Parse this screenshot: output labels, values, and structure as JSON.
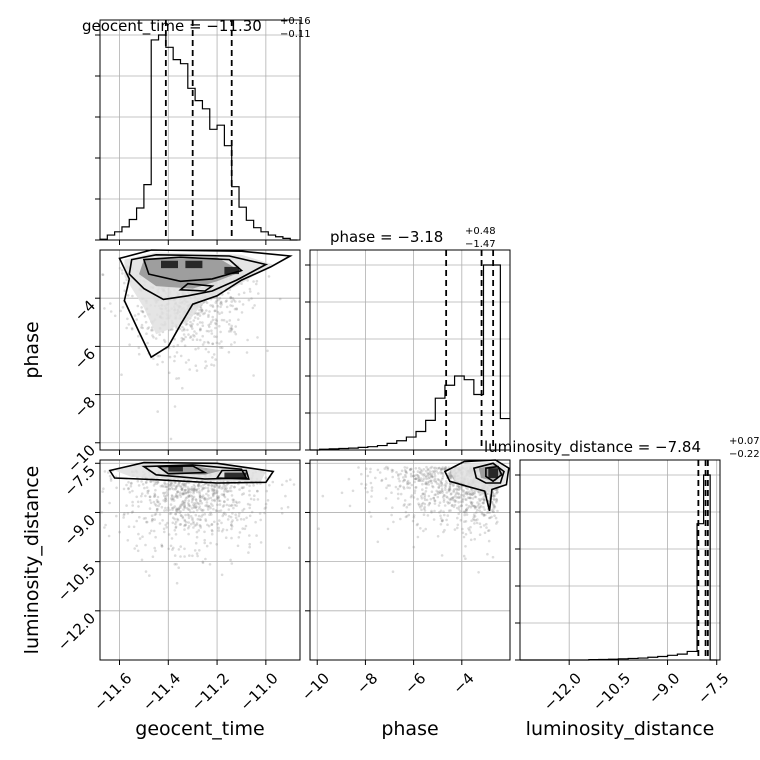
{
  "chart_data": {
    "type": "corner",
    "parameters": [
      {
        "name": "geocent_time",
        "label": "geocent_time",
        "range": [
          -11.68,
          -10.86
        ],
        "ticks": [
          -11.6,
          -11.4,
          -11.2,
          -11.0
        ],
        "tick_labels": [
          "−11.6",
          "−11.4",
          "−11.2",
          "−11.0"
        ]
      },
      {
        "name": "phase",
        "label": "phase",
        "range": [
          -10.3,
          -2.0
        ],
        "ticks": [
          -10,
          -8,
          -6,
          -4
        ],
        "tick_labels": [
          "−10",
          "−8",
          "−6",
          "−4"
        ]
      },
      {
        "name": "luminosity_distance",
        "label": "luminosity_distance",
        "range": [
          -13.5,
          -7.4
        ],
        "ticks": [
          -12.0,
          -10.5,
          -9.0,
          -7.5
        ],
        "tick_labels": [
          "−12.0",
          "−10.5",
          "−9.0",
          "−7.5"
        ]
      }
    ],
    "marginals": [
      {
        "parameter": "geocent_time",
        "title_main": "geocent_time = −11.30",
        "title_plus": "+0.16",
        "title_minus": "−0.11",
        "median": -11.3,
        "lower": -11.41,
        "upper": -11.14,
        "bin_edges": [
          -11.68,
          -11.65,
          -11.62,
          -11.59,
          -11.56,
          -11.53,
          -11.5,
          -11.47,
          -11.44,
          -11.41,
          -11.38,
          -11.35,
          -11.32,
          -11.29,
          -11.26,
          -11.23,
          -11.2,
          -11.17,
          -11.14,
          -11.11,
          -11.08,
          -11.05,
          -11.02,
          -10.99,
          -10.96,
          -10.93,
          -10.9,
          -10.87
        ],
        "counts": [
          2,
          12,
          20,
          32,
          50,
          78,
          135,
          488,
          500,
          470,
          440,
          430,
          370,
          340,
          320,
          270,
          280,
          230,
          130,
          80,
          48,
          30,
          20,
          12,
          8,
          4,
          0
        ]
      },
      {
        "parameter": "phase",
        "title_main": "phase = −3.18",
        "title_plus": "+0.48",
        "title_minus": "−1.47",
        "median": -3.18,
        "lower": -4.65,
        "upper": -2.7,
        "bin_edges": [
          -10.3,
          -9.9,
          -9.5,
          -9.1,
          -8.7,
          -8.3,
          -7.9,
          -7.5,
          -7.1,
          -6.7,
          -6.3,
          -5.9,
          -5.5,
          -5.1,
          -4.7,
          -4.3,
          -3.9,
          -3.5,
          -3.1,
          -2.7,
          -2.4,
          -2.0
        ],
        "counts": [
          0,
          4,
          6,
          8,
          10,
          14,
          18,
          24,
          36,
          50,
          70,
          100,
          160,
          280,
          350,
          400,
          380,
          300,
          1000,
          1000,
          170
        ]
      },
      {
        "parameter": "luminosity_distance",
        "title_main": "luminosity_distance = −7.84",
        "title_plus": "+0.07",
        "title_minus": "−0.22",
        "median": -7.84,
        "lower": -8.06,
        "upper": -7.77,
        "bin_edges": [
          -13.5,
          -13.2,
          -12.9,
          -12.6,
          -12.3,
          -12.0,
          -11.7,
          -11.4,
          -11.1,
          -10.8,
          -10.5,
          -10.2,
          -9.9,
          -9.6,
          -9.3,
          -9.0,
          -8.7,
          -8.4,
          -8.1,
          -7.9,
          -7.7,
          -7.5
        ],
        "counts": [
          0,
          0,
          0,
          0,
          0,
          0,
          0,
          2,
          3,
          4,
          6,
          8,
          10,
          14,
          18,
          24,
          30,
          44,
          700,
          950,
          0
        ]
      }
    ],
    "pairs": [
      {
        "x": "geocent_time",
        "y": "phase",
        "contour_fills": [
          {
            "level": 1,
            "points": [
              [
                -11.58,
                -2.4
              ],
              [
                -11.45,
                -2.1
              ],
              [
                -11.1,
                -2.2
              ],
              [
                -10.97,
                -2.6
              ],
              [
                -11.12,
                -3.5
              ],
              [
                -11.25,
                -4.1
              ],
              [
                -11.32,
                -5.0
              ],
              [
                -11.45,
                -5.5
              ],
              [
                -11.5,
                -4.4
              ],
              [
                -11.58,
                -3.1
              ]
            ]
          },
          {
            "level": 2,
            "points": [
              [
                -11.5,
                -2.4
              ],
              [
                -11.2,
                -2.3
              ],
              [
                -11.1,
                -2.9
              ],
              [
                -11.2,
                -3.3
              ],
              [
                -11.3,
                -3.6
              ],
              [
                -11.45,
                -3.5
              ],
              [
                -11.52,
                -3.0
              ]
            ]
          },
          {
            "level": 3,
            "points": [
              [
                -11.43,
                -2.45
              ],
              [
                -11.36,
                -2.45
              ],
              [
                -11.36,
                -2.75
              ],
              [
                -11.43,
                -2.75
              ]
            ]
          },
          {
            "level": 3,
            "points": [
              [
                -11.33,
                -2.45
              ],
              [
                -11.26,
                -2.45
              ],
              [
                -11.26,
                -2.75
              ],
              [
                -11.33,
                -2.75
              ]
            ]
          },
          {
            "level": 3,
            "points": [
              [
                -11.17,
                -2.7
              ],
              [
                -11.11,
                -2.7
              ],
              [
                -11.11,
                -3.0
              ],
              [
                -11.17,
                -3.0
              ]
            ]
          }
        ],
        "contour_lines": [
          [
            [
              -11.6,
              -2.35
            ],
            [
              -11.47,
              -2.0
            ],
            [
              -11.1,
              -2.05
            ],
            [
              -10.9,
              -2.25
            ],
            [
              -10.98,
              -2.7
            ],
            [
              -11.1,
              -3.25
            ],
            [
              -11.2,
              -3.9
            ],
            [
              -11.3,
              -4.25
            ],
            [
              -11.35,
              -5.1
            ],
            [
              -11.4,
              -6.0
            ],
            [
              -11.47,
              -6.45
            ],
            [
              -11.52,
              -5.4
            ],
            [
              -11.58,
              -4.1
            ],
            [
              -11.56,
              -3.2
            ]
          ],
          [
            [
              -11.55,
              -2.4
            ],
            [
              -11.45,
              -2.2
            ],
            [
              -11.15,
              -2.25
            ],
            [
              -11.0,
              -2.6
            ],
            [
              -11.12,
              -3.25
            ],
            [
              -11.22,
              -3.7
            ],
            [
              -11.32,
              -3.9
            ],
            [
              -11.42,
              -4.05
            ],
            [
              -11.5,
              -3.6
            ],
            [
              -11.56,
              -3.0
            ]
          ],
          [
            [
              -11.5,
              -2.4
            ],
            [
              -11.35,
              -2.3
            ],
            [
              -11.15,
              -2.4
            ],
            [
              -11.1,
              -2.85
            ],
            [
              -11.22,
              -3.2
            ],
            [
              -11.35,
              -3.3
            ],
            [
              -11.48,
              -3.0
            ]
          ],
          [
            [
              -11.32,
              -3.4
            ],
            [
              -11.22,
              -3.5
            ],
            [
              -11.25,
              -3.7
            ],
            [
              -11.35,
              -3.65
            ]
          ]
        ]
      },
      {
        "x": "geocent_time",
        "y": "luminosity_distance",
        "contour_fills": [
          {
            "level": 1,
            "points": [
              [
                -11.62,
                -7.72
              ],
              [
                -11.5,
                -7.5
              ],
              [
                -11.2,
                -7.52
              ],
              [
                -11.0,
                -7.75
              ],
              [
                -11.02,
                -8.05
              ],
              [
                -11.2,
                -8.05
              ],
              [
                -11.4,
                -7.98
              ],
              [
                -11.55,
                -7.92
              ]
            ]
          },
          {
            "level": 2,
            "points": [
              [
                -11.45,
                -7.6
              ],
              [
                -11.3,
                -7.58
              ],
              [
                -11.18,
                -7.72
              ],
              [
                -11.25,
                -7.85
              ],
              [
                -11.4,
                -7.82
              ]
            ]
          },
          {
            "level": 3,
            "points": [
              [
                -11.4,
                -7.58
              ],
              [
                -11.34,
                -7.58
              ],
              [
                -11.34,
                -7.75
              ],
              [
                -11.4,
                -7.75
              ]
            ]
          },
          {
            "level": 3,
            "points": [
              [
                -11.17,
                -7.78
              ],
              [
                -11.08,
                -7.78
              ],
              [
                -11.08,
                -7.95
              ],
              [
                -11.17,
                -7.95
              ]
            ]
          }
        ],
        "contour_lines": [
          [
            [
              -11.64,
              -7.72
            ],
            [
              -11.5,
              -7.48
            ],
            [
              -11.2,
              -7.5
            ],
            [
              -10.97,
              -7.75
            ],
            [
              -11.0,
              -8.08
            ],
            [
              -11.2,
              -8.1
            ],
            [
              -11.45,
              -8.0
            ],
            [
              -11.62,
              -7.95
            ]
          ],
          [
            [
              -11.5,
              -7.6
            ],
            [
              -11.3,
              -7.55
            ],
            [
              -11.1,
              -7.68
            ],
            [
              -11.08,
              -7.95
            ],
            [
              -11.25,
              -7.98
            ],
            [
              -11.45,
              -7.85
            ]
          ],
          [
            [
              -11.44,
              -7.6
            ],
            [
              -11.3,
              -7.58
            ],
            [
              -11.25,
              -7.78
            ],
            [
              -11.4,
              -7.82
            ]
          ],
          [
            [
              -11.18,
              -7.72
            ],
            [
              -11.08,
              -7.72
            ],
            [
              -11.07,
              -7.98
            ],
            [
              -11.2,
              -7.95
            ]
          ]
        ]
      },
      {
        "x": "phase",
        "y": "luminosity_distance",
        "contour_fills": [
          {
            "level": 1,
            "points": [
              [
                -4.5,
                -7.7
              ],
              [
                -3.8,
                -7.5
              ],
              [
                -2.5,
                -7.45
              ],
              [
                -2.1,
                -7.7
              ],
              [
                -2.2,
                -8.1
              ],
              [
                -2.8,
                -8.4
              ],
              [
                -3.7,
                -8.2
              ],
              [
                -4.3,
                -8.0
              ]
            ]
          },
          {
            "level": 2,
            "points": [
              [
                -3.3,
                -7.65
              ],
              [
                -2.6,
                -7.55
              ],
              [
                -2.3,
                -7.8
              ],
              [
                -2.6,
                -8.05
              ],
              [
                -3.2,
                -7.95
              ]
            ]
          },
          {
            "level": 3,
            "points": [
              [
                -2.9,
                -7.65
              ],
              [
                -2.5,
                -7.65
              ],
              [
                -2.5,
                -7.95
              ],
              [
                -2.9,
                -7.95
              ]
            ]
          }
        ],
        "contour_lines": [
          [
            [
              -4.7,
              -7.75
            ],
            [
              -3.9,
              -7.45
            ],
            [
              -2.6,
              -7.4
            ],
            [
              -2.05,
              -7.65
            ],
            [
              -2.15,
              -8.15
            ],
            [
              -2.75,
              -8.3
            ],
            [
              -2.85,
              -8.95
            ],
            [
              -3.05,
              -8.35
            ],
            [
              -3.8,
              -8.2
            ],
            [
              -4.5,
              -8.05
            ]
          ],
          [
            [
              -3.5,
              -7.65
            ],
            [
              -2.7,
              -7.5
            ],
            [
              -2.25,
              -7.75
            ],
            [
              -2.4,
              -8.1
            ],
            [
              -3.0,
              -8.1
            ],
            [
              -3.4,
              -7.95
            ]
          ],
          [
            [
              -3.0,
              -7.65
            ],
            [
              -2.5,
              -7.6
            ],
            [
              -2.35,
              -7.85
            ],
            [
              -2.7,
              -8.05
            ],
            [
              -3.0,
              -7.9
            ]
          ]
        ]
      }
    ]
  }
}
